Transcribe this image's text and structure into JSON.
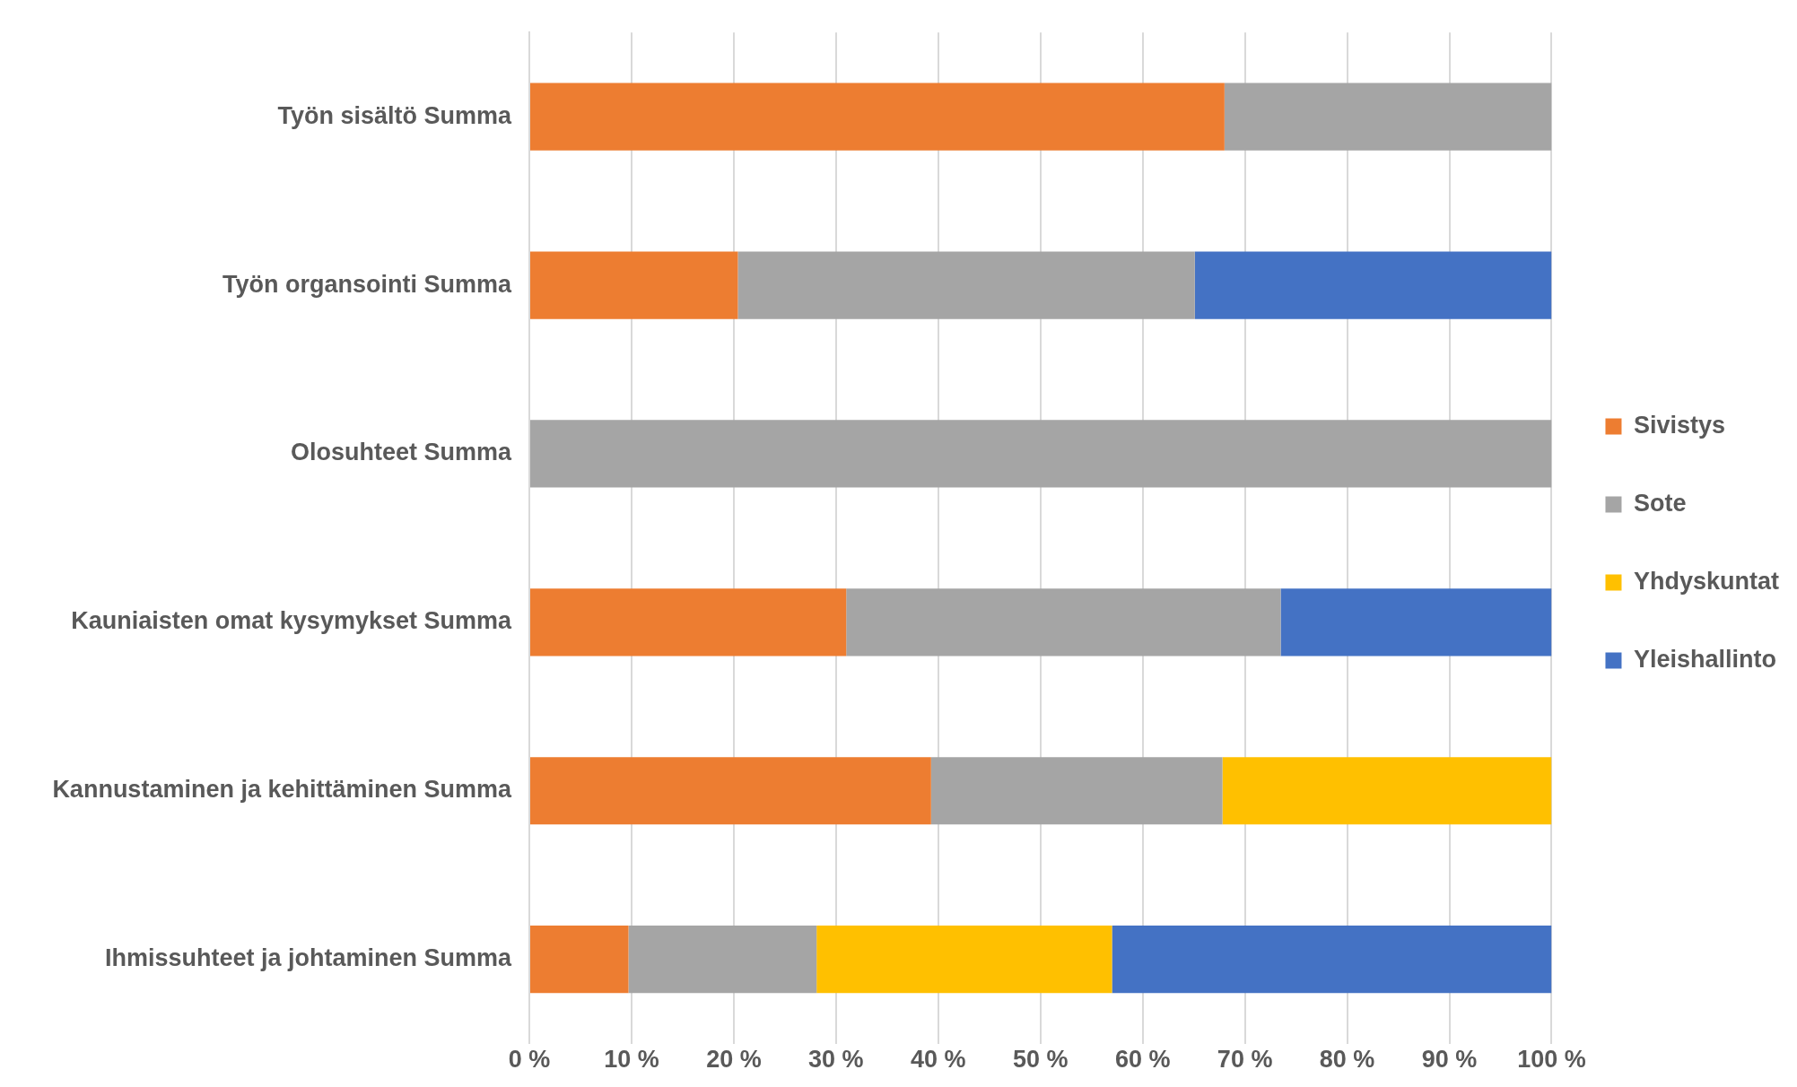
{
  "chart_data": {
    "type": "bar",
    "orientation": "horizontal",
    "stacked": true,
    "categories": [
      "Työn sisältö Summa",
      "Työn organsointi Summa",
      "Olosuhteet Summa",
      "Kauniaisten omat kysymykset Summa",
      "Kannustaminen ja kehittäminen Summa",
      "Ihmissuhteet ja johtaminen Summa"
    ],
    "series": [
      {
        "name": "Sivistys",
        "color": "#ed7d31",
        "values": [
          68,
          20.4,
          null,
          31,
          39.3,
          9.7
        ]
      },
      {
        "name": "Sote",
        "color": "#a5a5a5",
        "values": [
          32,
          44.7,
          100,
          42.5,
          28.5,
          18.4
        ]
      },
      {
        "name": "Yhdyskuntat",
        "color": "#ffc000",
        "values": [
          null,
          null,
          null,
          null,
          32.2,
          28.9
        ]
      },
      {
        "name": "Yleishallinto",
        "color": "#4472c4",
        "values": [
          null,
          34.9,
          null,
          26.5,
          null,
          43
        ]
      }
    ],
    "xlim": [
      0,
      100
    ],
    "xticks": [
      {
        "value": 0,
        "label": "0 %"
      },
      {
        "value": 10,
        "label": "10 %"
      },
      {
        "value": 20,
        "label": "20 %"
      },
      {
        "value": 30,
        "label": "30 %"
      },
      {
        "value": 40,
        "label": "40 %"
      },
      {
        "value": 50,
        "label": "50 %"
      },
      {
        "value": 60,
        "label": "60 %"
      },
      {
        "value": 70,
        "label": "70 %"
      },
      {
        "value": 80,
        "label": "80 %"
      },
      {
        "value": 90,
        "label": "90 %"
      },
      {
        "value": 100,
        "label": "100 %"
      }
    ],
    "grid": "x",
    "legend": "right"
  }
}
